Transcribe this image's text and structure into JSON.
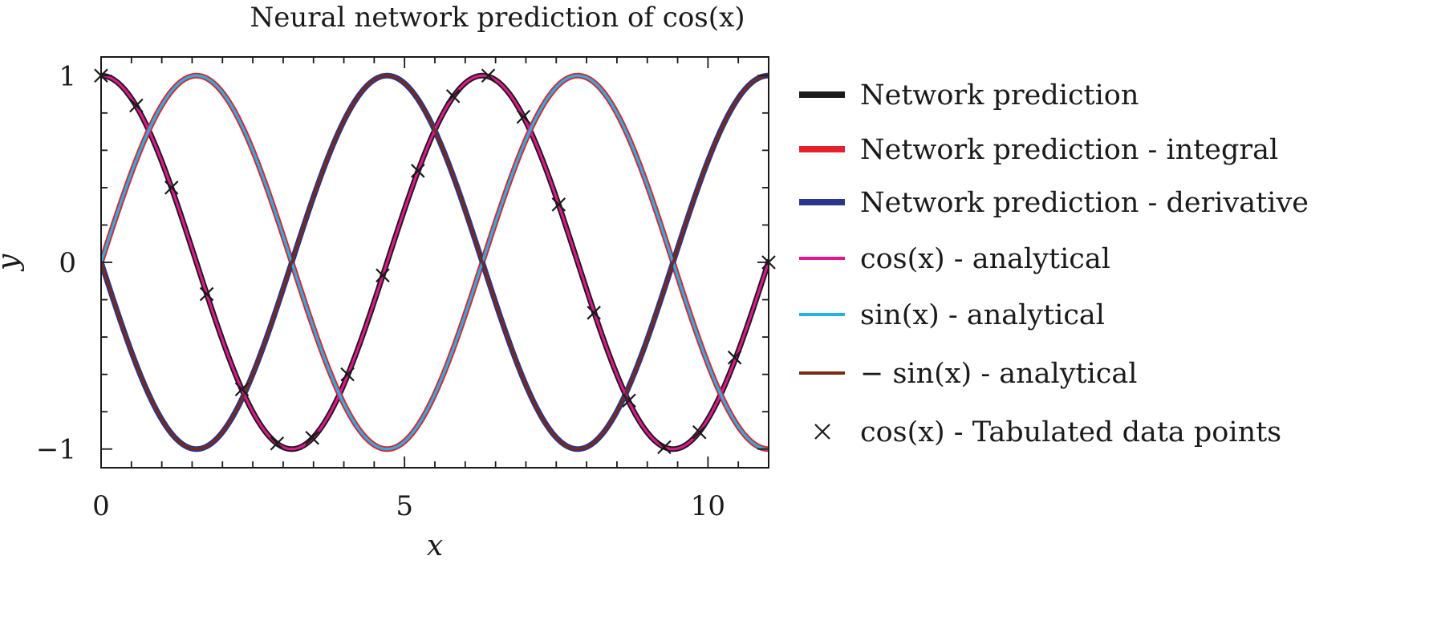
{
  "chart_data": {
    "type": "line",
    "title": "Neural network prediction of cos(x)",
    "xlabel": "x",
    "ylabel": "y",
    "xlim": [
      0,
      11
    ],
    "ylim": [
      -1.1,
      1.1
    ],
    "x_ticks": [
      0,
      5,
      10
    ],
    "x_tick_labels": [
      "0",
      "5",
      "10"
    ],
    "y_ticks": [
      1,
      0,
      -1
    ],
    "y_tick_labels": [
      "1",
      "0",
      "−1"
    ],
    "grid": false,
    "legend_position": "right",
    "series": [
      {
        "name": "Network prediction",
        "function": "cos",
        "color": "#1a1a1a",
        "style": "thick-line",
        "x_range": [
          0,
          11
        ]
      },
      {
        "name": "Network prediction - integral",
        "function": "sin",
        "color": "#e8202a",
        "style": "thick-line",
        "x_range": [
          0,
          11
        ]
      },
      {
        "name": "Network prediction - derivative",
        "function": "-sin",
        "color": "#2a3590",
        "style": "thick-line",
        "x_range": [
          0,
          11
        ]
      },
      {
        "name": "cos(x) - analytical",
        "function": "cos",
        "color": "#e0178f",
        "style": "line",
        "x_range": [
          0,
          11
        ]
      },
      {
        "name": "sin(x) - analytical",
        "function": "sin",
        "color": "#1fb4e6",
        "style": "line",
        "x_range": [
          0,
          11
        ]
      },
      {
        "name": "− sin(x) - analytical",
        "function": "-sin",
        "color": "#7a2a12",
        "style": "line",
        "x_range": [
          0,
          11
        ]
      },
      {
        "name": "cos(x) - Tabulated data points",
        "function": "cos",
        "color": "#1a1a1a",
        "style": "markers-x",
        "x": [
          0.0,
          0.58,
          1.16,
          1.74,
          2.32,
          2.9,
          3.48,
          4.06,
          4.64,
          5.22,
          5.8,
          6.38,
          6.96,
          7.54,
          8.12,
          8.7,
          9.28,
          9.86,
          10.44,
          11.0
        ],
        "y": [
          1.0,
          0.84,
          0.4,
          -0.17,
          -0.68,
          -0.97,
          -0.94,
          -0.6,
          -0.07,
          0.49,
          0.89,
          1.0,
          0.78,
          0.31,
          -0.27,
          -0.74,
          -0.99,
          -0.91,
          -0.51,
          0.0
        ]
      }
    ]
  }
}
